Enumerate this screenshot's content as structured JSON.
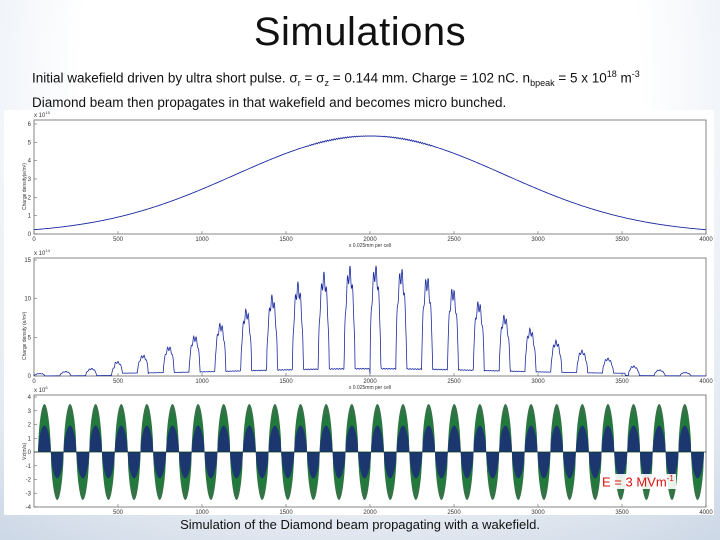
{
  "slide": {
    "title": "Simulations",
    "subtitle": {
      "line1_a": "Initial wakefield driven by ultra short pulse. σ",
      "line1_sub_r": "r",
      "line1_b": " = σ",
      "line1_sub_z": "z",
      "line1_c": " = 0.144 mm. Charge = 102 nC. n",
      "line1_sub_bpeak": "bpeak",
      "line1_d": " = 5 x 10",
      "line1_sup_exp": "18",
      "line1_e": " m",
      "line1_sup_unit": "-3",
      "line2": "Diamond beam then propagates in that wakefield and becomes micro bunched."
    },
    "field_label": {
      "text": "E = 3 MVm",
      "sup": "-1",
      "color": "#dd1111"
    },
    "caption": "Simulation of the Diamond beam propagating with a wakefield."
  },
  "plots": {
    "top": {
      "scale_label": "x 10",
      "scale_exp": "15",
      "ylabel": "Charge density(e/m²)",
      "xlabel": "x 0.025mm per cell",
      "y_ticks": [
        "0",
        "1",
        "2",
        "3",
        "4",
        "5",
        "6"
      ],
      "x_ticks": [
        "0",
        "500",
        "1000",
        "1500",
        "2000",
        "2500",
        "3000",
        "3500",
        "4000"
      ],
      "line_color": "#1a2aa0"
    },
    "middle": {
      "scale_label": "x 10",
      "scale_exp": "14",
      "ylabel": "Charge density (e/m²)",
      "xlabel": "x 0.025mm per cell",
      "y_ticks": [
        "0",
        "5",
        "10",
        "15"
      ],
      "x_ticks": [
        "0",
        "500",
        "1000",
        "1500",
        "2000",
        "2500",
        "3000",
        "3500",
        "4000"
      ],
      "line_color": "#1a2aa0"
    },
    "bottom": {
      "scale_label": "x 10",
      "scale_exp": "6",
      "ylabel": "Vz(m/s)",
      "y_ticks": [
        "-4",
        "-3",
        "-2",
        "-1",
        "0",
        "1",
        "2",
        "3",
        "4"
      ],
      "x_ticks": [
        "500",
        "1000",
        "1500",
        "2000",
        "2500",
        "3000",
        "3500",
        "4000"
      ],
      "color_top": "#1b2b7a",
      "color_mid": "#1f7a3a",
      "color_low": "#0f5a25"
    }
  }
}
